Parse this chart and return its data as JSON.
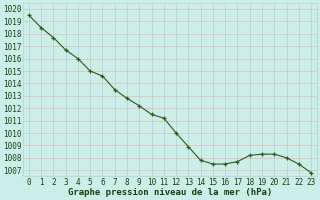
{
  "x": [
    0,
    1,
    2,
    3,
    4,
    5,
    6,
    7,
    8,
    9,
    10,
    11,
    12,
    13,
    14,
    15,
    16,
    17,
    18,
    19,
    20,
    21,
    22,
    23
  ],
  "y": [
    1019.5,
    1018.5,
    1017.7,
    1016.7,
    1016.0,
    1015.0,
    1014.6,
    1013.5,
    1012.8,
    1012.2,
    1011.5,
    1011.2,
    1010.0,
    1008.9,
    1007.8,
    1007.5,
    1007.5,
    1007.7,
    1008.2,
    1008.3,
    1008.3,
    1008.0,
    1007.5,
    1006.8
  ],
  "line_color": "#2d5a1b",
  "marker": "+",
  "marker_size": 3,
  "bg_color": "#cceee8",
  "grid_h_color": "#e8b8b8",
  "grid_v_color": "#a8d8d0",
  "xlabel": "Graphe pression niveau de la mer (hPa)",
  "xlabel_fontsize": 6.5,
  "xlabel_color": "#1a4010",
  "ytick_labels": [
    1007,
    1008,
    1009,
    1010,
    1011,
    1012,
    1013,
    1014,
    1015,
    1016,
    1017,
    1018,
    1019,
    1020
  ],
  "ylim": [
    1006.5,
    1020.5
  ],
  "xlim": [
    -0.5,
    23.5
  ],
  "tick_fontsize": 5.5,
  "tick_color": "#1a4010"
}
